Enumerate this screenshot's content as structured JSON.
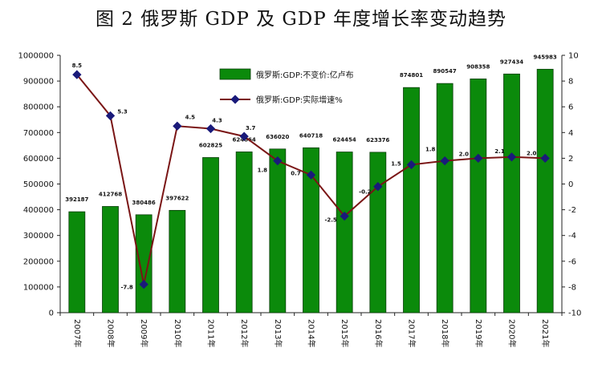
{
  "title": "图 2 俄罗斯 GDP 及 GDP 年度增长率变动趋势",
  "colors": {
    "bar": "#0b8a0b",
    "bar_edge": "#0a3d0a",
    "line": "#7a1515",
    "marker": "#1a1a7a"
  },
  "chart_data": {
    "type": "bar",
    "categories": [
      "2007年",
      "2008年",
      "2009年",
      "2010年",
      "2011年",
      "2012年",
      "2013年",
      "2014年",
      "2015年",
      "2016年",
      "2017年",
      "2018年",
      "2019年",
      "2020年",
      "2021年"
    ],
    "series": [
      {
        "name": "俄罗斯:GDP:不变价:亿卢布",
        "type": "bar",
        "axis": "left",
        "values": [
          392187,
          412768,
          380486,
          397622,
          602825,
          624864,
          636020,
          640718,
          624454,
          623376,
          874801,
          890547,
          908358,
          927434,
          945983
        ],
        "labels": [
          "392187",
          "412768",
          "380486",
          "397622",
          "602825",
          "624864",
          "636020",
          "640718",
          "624454",
          "623376",
          "874801",
          "890547",
          "908358",
          "927434",
          "945983"
        ]
      },
      {
        "name": "俄罗斯:GDP:实际增速%",
        "type": "line",
        "axis": "right",
        "values": [
          8.5,
          5.3,
          -7.8,
          4.5,
          4.3,
          3.7,
          1.8,
          0.7,
          -2.5,
          -0.2,
          1.5,
          1.8,
          2.0,
          2.1,
          2.0
        ],
        "labels": [
          "8.5",
          "5.3",
          "-7.8",
          "4.5",
          "4.3",
          "3.7",
          "1.8",
          "0.7",
          "-2.5",
          "-0.2",
          "1.5",
          "1.8",
          "2.0",
          "2.1",
          "2.0"
        ]
      }
    ],
    "y_left": {
      "min": 0,
      "max": 1000000,
      "ticks": [
        0,
        100000,
        200000,
        300000,
        400000,
        500000,
        600000,
        700000,
        800000,
        900000,
        1000000
      ],
      "tick_labels": [
        "0",
        "100000",
        "200000",
        "300000",
        "400000",
        "500000",
        "600000",
        "700000",
        "800000",
        "900000",
        "1000000"
      ]
    },
    "y_right": {
      "min": -10,
      "max": 10,
      "ticks": [
        -10,
        -8,
        -6,
        -4,
        -2,
        0,
        2,
        4,
        6,
        8,
        10
      ],
      "tick_labels": [
        "-10",
        "-8",
        "-6",
        "-4",
        "-2",
        "0",
        "2",
        "4",
        "6",
        "8",
        "10"
      ]
    },
    "legend": [
      "俄罗斯:GDP:不变价:亿卢布",
      "俄罗斯:GDP:实际增速%"
    ],
    "legend_placement": "top-center",
    "grid": false
  }
}
